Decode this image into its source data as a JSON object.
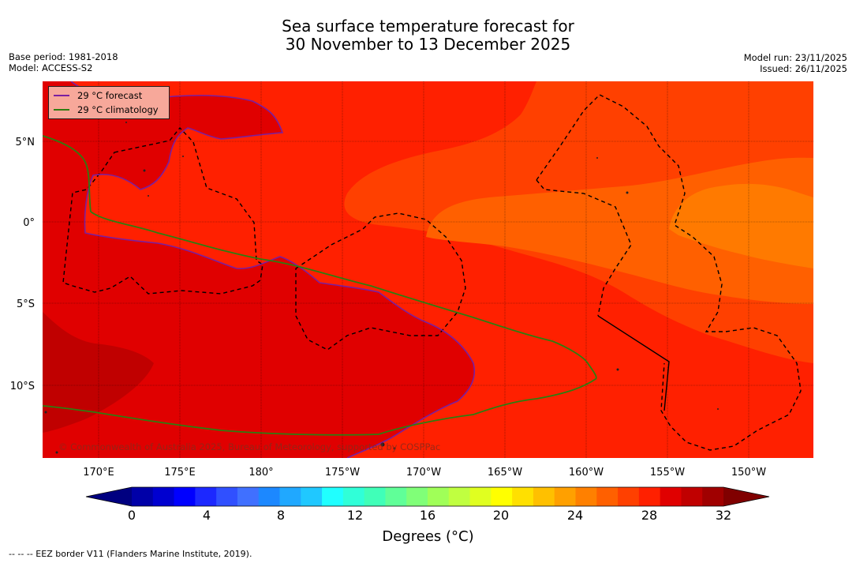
{
  "title_line1": "Sea surface temperature forecast for",
  "title_line2": "30 November to 13 December 2025",
  "base_period": "Base period: 1981-2018",
  "model": "Model: ACCESS-S2",
  "model_run": "Model run: 23/11/2025",
  "issued": "Issued: 26/11/2025",
  "legend": [
    {
      "label": "29 °C  forecast",
      "color": "#7a1fa0"
    },
    {
      "label": "29 °C  climatology",
      "color": "#2e7d10"
    }
  ],
  "copyright": "© Commonwealth of Australia 2025, Bureau of Meteorology, supported by COSPPac",
  "lon_labels": [
    "170°E",
    "175°E",
    "180°",
    "175°W",
    "170°W",
    "165°W",
    "160°W",
    "155°W",
    "150°W"
  ],
  "lat_labels": [
    "5°N",
    "0°",
    "5°S",
    "10°S"
  ],
  "colorbar": {
    "title": "Degrees (°C)",
    "ticks": [
      "0",
      "4",
      "8",
      "12",
      "16",
      "20",
      "24",
      "28",
      "32"
    ],
    "colors": [
      "#000080",
      "#0000a8",
      "#0000d0",
      "#0000ff",
      "#1c28ff",
      "#3050ff",
      "#4070ff",
      "#1c88ff",
      "#20a8ff",
      "#20c8ff",
      "#20ffff",
      "#30ffd8",
      "#40ffb8",
      "#60ff98",
      "#80ff78",
      "#a0ff58",
      "#c0ff40",
      "#e0ff20",
      "#ffff00",
      "#ffe000",
      "#ffc000",
      "#ffa000",
      "#ff8000",
      "#ff6000",
      "#ff4000",
      "#ff2000",
      "#e00000",
      "#c00000",
      "#a00000",
      "#800000"
    ]
  },
  "footnote": "--  --  -- EEZ border V11 (Flanders Marine Institute, 2019)."
}
